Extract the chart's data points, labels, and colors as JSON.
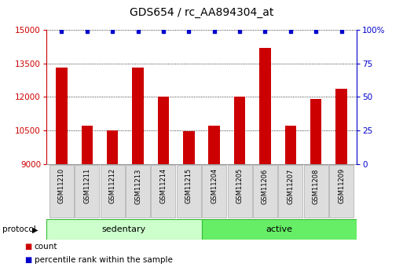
{
  "title": "GDS654 / rc_AA894304_at",
  "categories": [
    "GSM11210",
    "GSM11211",
    "GSM11212",
    "GSM11213",
    "GSM11214",
    "GSM11215",
    "GSM11204",
    "GSM11205",
    "GSM11206",
    "GSM11207",
    "GSM11208",
    "GSM11209"
  ],
  "bar_values": [
    13300,
    10700,
    10500,
    13300,
    12000,
    10450,
    10700,
    12000,
    14200,
    10700,
    11900,
    12350
  ],
  "percentile_values": [
    99,
    99,
    99,
    99,
    99,
    99,
    99,
    99,
    99,
    99,
    99,
    99
  ],
  "bar_color": "#cc0000",
  "percentile_color": "#0000cc",
  "ylim_left": [
    9000,
    15000
  ],
  "ylim_right": [
    0,
    100
  ],
  "yticks_left": [
    9000,
    10500,
    12000,
    13500,
    15000
  ],
  "yticks_right": [
    0,
    25,
    50,
    75,
    100
  ],
  "groups": [
    {
      "label": "sedentary",
      "start": 0,
      "end": 6,
      "color": "#ccffcc"
    },
    {
      "label": "active",
      "start": 6,
      "end": 12,
      "color": "#66ee66"
    }
  ],
  "protocol_label": "protocol",
  "legend_count_label": "count",
  "legend_percentile_label": "percentile rank within the sample",
  "title_fontsize": 10,
  "tick_fontsize": 7.5,
  "bar_width": 0.45
}
